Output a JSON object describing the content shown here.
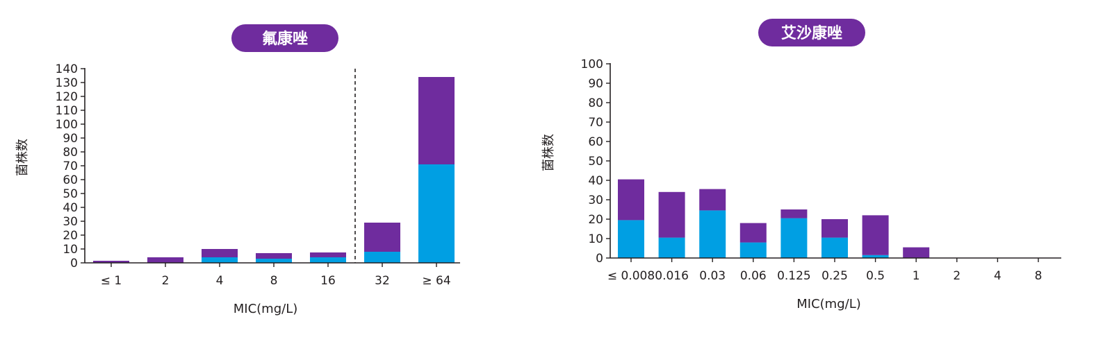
{
  "colors": {
    "purple": "#6f2c9e",
    "blue": "#009fe3",
    "axis": "#231f20",
    "pill_text": "#ffffff"
  },
  "chart_data": [
    {
      "type": "bar",
      "stacked": true,
      "title": "氟康唑",
      "xlabel": "MIC(mg/L)",
      "ylabel": "菌株数",
      "ylim": [
        0,
        140
      ],
      "ytick_step": 10,
      "categories": [
        "≤ 1",
        "2",
        "4",
        "8",
        "16",
        "32",
        "≥ 64"
      ],
      "series": [
        {
          "color": "#009fe3",
          "values": [
            0,
            0,
            4,
            3,
            4,
            8,
            71
          ]
        },
        {
          "color": "#6f2c9e",
          "values": [
            1.5,
            4,
            6,
            4,
            3.5,
            21,
            63
          ]
        }
      ],
      "cutoff_line": {
        "between": [
          "16",
          "32"
        ],
        "style": "dashed"
      },
      "grid": false
    },
    {
      "type": "bar",
      "stacked": true,
      "title": "艾沙康唑",
      "xlabel": "MIC(mg/L)",
      "ylabel": "菌株数",
      "ylim": [
        0,
        100
      ],
      "ytick_step": 10,
      "categories": [
        "≤ 0.008",
        "0.016",
        "0.03",
        "0.06",
        "0.125",
        "0.25",
        "0.5",
        "1",
        "2",
        "4",
        "8"
      ],
      "series": [
        {
          "color": "#009fe3",
          "values": [
            19.5,
            10.5,
            24.5,
            8,
            20.5,
            10.5,
            1.5,
            0,
            0,
            0,
            0
          ]
        },
        {
          "color": "#6f2c9e",
          "values": [
            21,
            23.5,
            11,
            10,
            4.5,
            9.5,
            20.5,
            5.5,
            0,
            0,
            0
          ]
        }
      ],
      "grid": false
    }
  ]
}
